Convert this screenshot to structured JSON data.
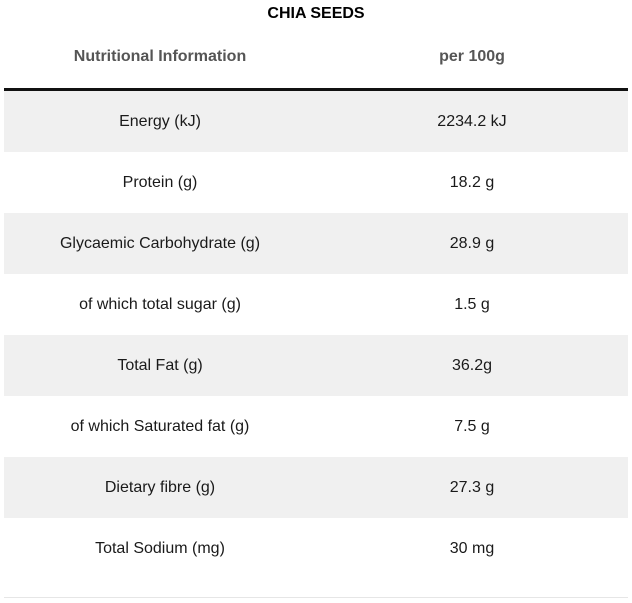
{
  "title": "CHIA SEEDS",
  "header": {
    "name": "Nutritional Information",
    "value": "per 100g"
  },
  "rows": [
    {
      "name": "Energy (kJ)",
      "value": "2234.2 kJ"
    },
    {
      "name": "Protein (g)",
      "value": "18.2 g"
    },
    {
      "name": "Glycaemic Carbohydrate (g)",
      "value": "28.9 g"
    },
    {
      "name": "of which total sugar (g)",
      "value": "1.5 g"
    },
    {
      "name": "Total Fat (g)",
      "value": "36.2g"
    },
    {
      "name": "of which Saturated fat (g)",
      "value": "7.5 g"
    },
    {
      "name": "Dietary fibre (g)",
      "value": "27.3 g"
    },
    {
      "name": "Total Sodium (mg)",
      "value": "30 mg"
    }
  ],
  "colors": {
    "shaded_row": "#f0f0f0",
    "header_text": "#555555",
    "header_rule": "#111111"
  }
}
